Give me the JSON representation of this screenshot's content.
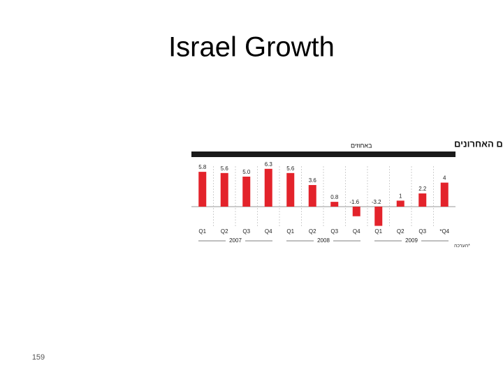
{
  "slide": {
    "title": "Israel Growth",
    "page_number": 159
  },
  "chart_data": {
    "type": "bar",
    "title": "הצמיחה ברבעונים האחרונים",
    "subtitle": "באחוזים",
    "categories": [
      "Q1",
      "Q2",
      "Q3",
      "Q4",
      "Q1",
      "Q2",
      "Q3",
      "Q4",
      "Q1",
      "Q2",
      "Q3",
      "*Q4"
    ],
    "groups": [
      "2007",
      "2008",
      "2009"
    ],
    "values": [
      5.8,
      5.6,
      5.0,
      6.3,
      5.6,
      3.6,
      0.8,
      -1.6,
      -3.2,
      1,
      2.2,
      4
    ],
    "value_labels": [
      "5.8",
      "5.6",
      "5.0",
      "6.3",
      "5.6",
      "3.6",
      "0.8",
      "-1.6",
      "-3.2",
      "1",
      "2.2",
      "4"
    ],
    "color": "#e3232b",
    "footnote": "*הערכה"
  }
}
